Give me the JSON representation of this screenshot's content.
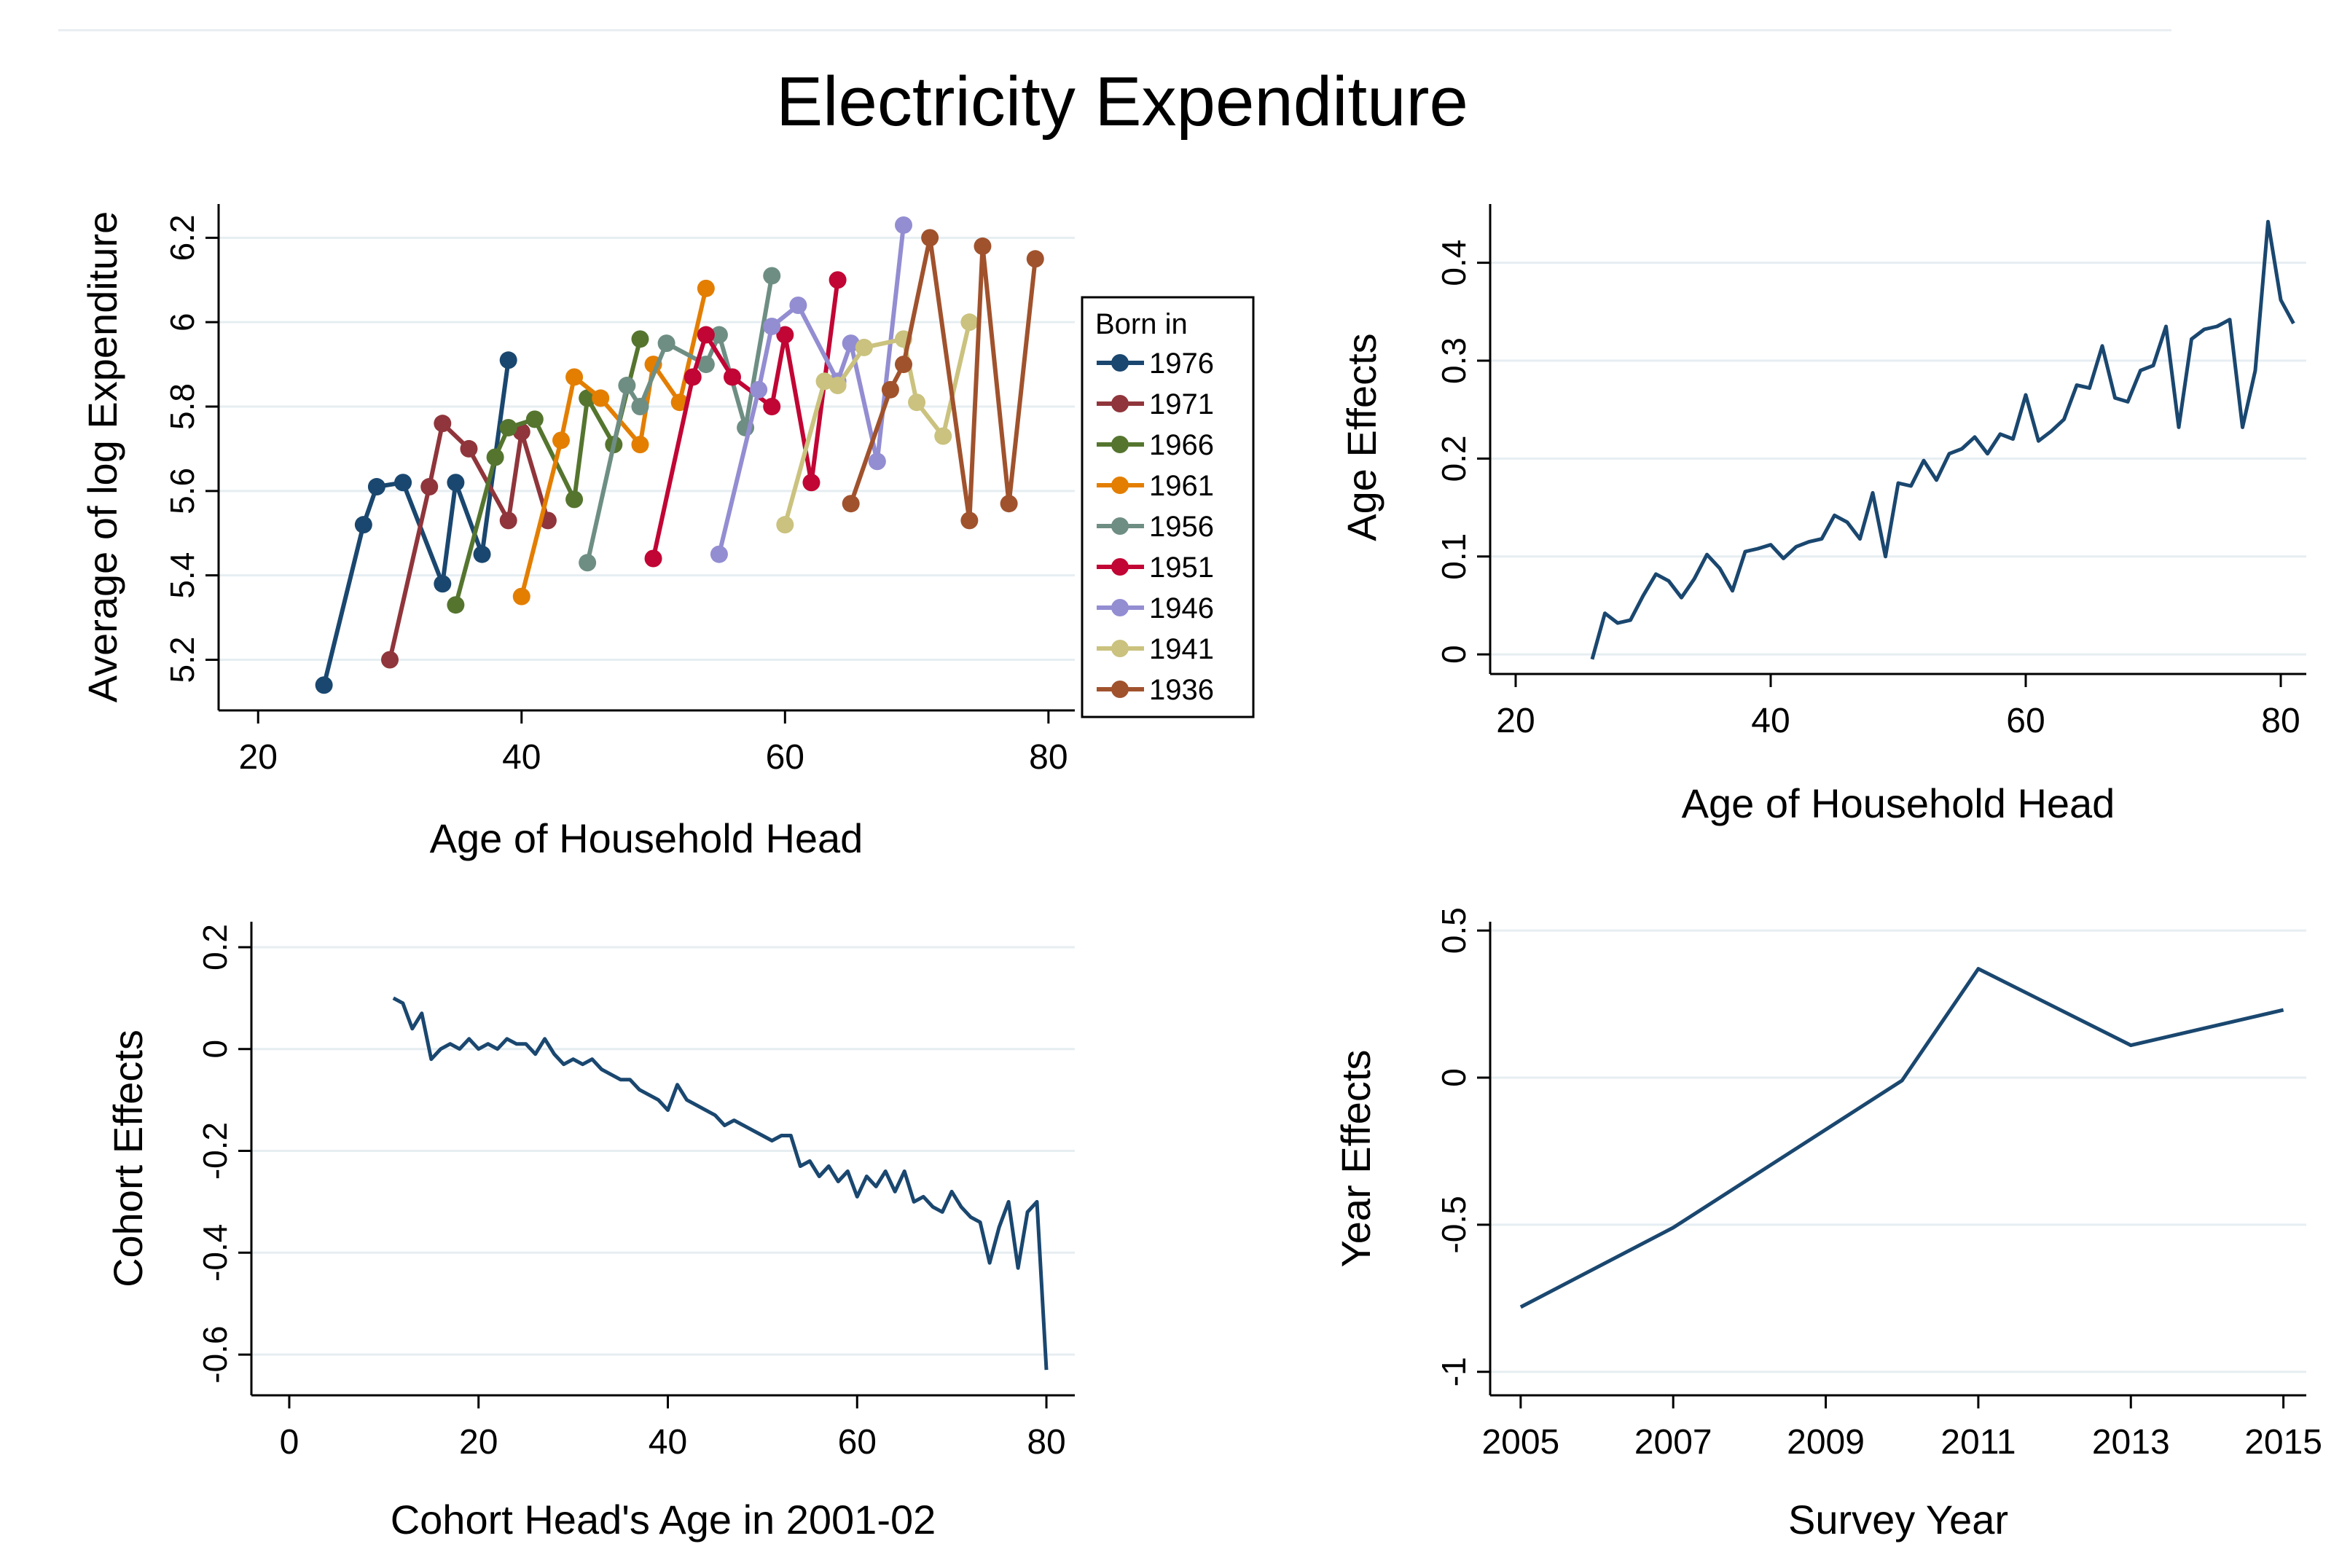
{
  "figure": {
    "title": "Electricity Expenditure"
  },
  "colors": {
    "series": [
      "#1a476f",
      "#90353b",
      "#55752f",
      "#e37e00",
      "#6e8e84",
      "#c10534",
      "#938dd2",
      "#cac27e",
      "#a0522d"
    ],
    "line": "#1a476f",
    "grid": "#e6eef2",
    "axis": "#000000"
  },
  "chart_data": [
    {
      "id": "cohort-profiles",
      "type": "line",
      "title": "",
      "xlabel": "Age of Household Head",
      "ylabel": "Average of log Expenditure",
      "xlim": [
        17,
        82
      ],
      "ylim": [
        5.08,
        6.28
      ],
      "xticks": [
        20,
        40,
        60,
        80
      ],
      "yticks": [
        5.2,
        5.4,
        5.6,
        5.8,
        6.0,
        6.2
      ],
      "ytick_labels": [
        "5.2",
        "5.4",
        "5.6",
        "5.8",
        "6",
        "6.2"
      ],
      "legend": {
        "title": "Born in",
        "position": "right"
      },
      "series": [
        {
          "name": "1976",
          "x": [
            25,
            28,
            29,
            31,
            34,
            35,
            37,
            39
          ],
          "y": [
            5.14,
            5.52,
            5.61,
            5.62,
            5.38,
            5.62,
            5.45,
            5.91
          ]
        },
        {
          "name": "1971",
          "x": [
            30,
            33,
            34,
            36,
            39,
            40,
            42
          ],
          "y": [
            5.2,
            5.61,
            5.76,
            5.7,
            5.53,
            5.74,
            5.53
          ]
        },
        {
          "name": "1966",
          "x": [
            35,
            38,
            39,
            41,
            44,
            45,
            47,
            49
          ],
          "y": [
            5.33,
            5.68,
            5.75,
            5.77,
            5.58,
            5.82,
            5.71,
            5.96
          ]
        },
        {
          "name": "1961",
          "x": [
            40,
            43,
            44,
            46,
            49,
            50,
            52,
            54
          ],
          "y": [
            5.35,
            5.72,
            5.87,
            5.82,
            5.71,
            5.9,
            5.81,
            6.08
          ]
        },
        {
          "name": "1956",
          "x": [
            45,
            48,
            49,
            51,
            54,
            55,
            57,
            59
          ],
          "y": [
            5.43,
            5.85,
            5.8,
            5.95,
            5.9,
            5.97,
            5.75,
            6.11
          ]
        },
        {
          "name": "1951",
          "x": [
            50,
            53,
            54,
            56,
            59,
            60,
            62,
            64
          ],
          "y": [
            5.44,
            5.87,
            5.97,
            5.87,
            5.8,
            5.97,
            5.62,
            6.1
          ]
        },
        {
          "name": "1946",
          "x": [
            55,
            58,
            59,
            61,
            64,
            65,
            67,
            69
          ],
          "y": [
            5.45,
            5.84,
            5.99,
            6.04,
            5.86,
            5.95,
            5.67,
            6.23
          ]
        },
        {
          "name": "1941",
          "x": [
            60,
            63,
            64,
            66,
            69,
            70,
            72,
            74
          ],
          "y": [
            5.52,
            5.86,
            5.85,
            5.94,
            5.96,
            5.81,
            5.73,
            6.0
          ]
        },
        {
          "name": "1936",
          "x": [
            65,
            68,
            69,
            71,
            74,
            75,
            77,
            79
          ],
          "y": [
            5.57,
            5.84,
            5.9,
            6.2,
            5.53,
            6.18,
            5.57,
            6.15
          ]
        }
      ]
    },
    {
      "id": "age-effects",
      "type": "line",
      "title": "",
      "xlabel": "Age of Household Head",
      "ylabel": "Age Effects",
      "xlim": [
        18,
        82
      ],
      "ylim": [
        -0.02,
        0.46
      ],
      "xticks": [
        20,
        40,
        60,
        80
      ],
      "yticks": [
        0,
        0.1,
        0.2,
        0.3,
        0.4
      ],
      "ytick_labels": [
        "0",
        "0.1",
        "0.2",
        "0.3",
        "0.4"
      ],
      "series": [
        {
          "name": "Age Effects",
          "x": [
            26,
            27,
            28,
            29,
            30,
            31,
            32,
            33,
            34,
            35,
            36,
            37,
            38,
            39,
            40,
            41,
            42,
            43,
            44,
            45,
            46,
            47,
            48,
            49,
            50,
            51,
            52,
            53,
            54,
            55,
            56,
            57,
            58,
            59,
            60,
            61,
            62,
            63,
            64,
            65,
            66,
            67,
            68,
            69,
            70,
            71,
            72,
            73,
            74,
            75,
            76,
            77,
            78,
            79,
            80,
            81
          ],
          "y": [
            -0.005,
            0.042,
            0.032,
            0.035,
            0.06,
            0.082,
            0.075,
            0.058,
            0.077,
            0.102,
            0.088,
            0.065,
            0.105,
            0.108,
            0.112,
            0.098,
            0.11,
            0.115,
            0.118,
            0.142,
            0.135,
            0.118,
            0.165,
            0.1,
            0.175,
            0.172,
            0.198,
            0.178,
            0.205,
            0.21,
            0.222,
            0.205,
            0.225,
            0.22,
            0.265,
            0.218,
            0.228,
            0.24,
            0.275,
            0.272,
            0.315,
            0.262,
            0.258,
            0.29,
            0.295,
            0.335,
            0.232,
            0.322,
            0.332,
            0.335,
            0.342,
            0.232,
            0.29,
            0.442,
            0.362,
            0.338
          ]
        }
      ]
    },
    {
      "id": "cohort-effects",
      "type": "line",
      "title": "",
      "xlabel": "Cohort Head's Age in 2001-02",
      "ylabel": "Cohort Effects",
      "xlim": [
        -4,
        83
      ],
      "ylim": [
        -0.68,
        0.25
      ],
      "xticks": [
        0,
        20,
        40,
        60,
        80
      ],
      "yticks": [
        -0.6,
        -0.4,
        -0.2,
        0,
        0.2
      ],
      "ytick_labels": [
        "-0.6",
        "-0.4",
        "-0.2",
        "0",
        "0.2"
      ],
      "series": [
        {
          "name": "Cohort Effects",
          "x": [
            11,
            12,
            13,
            14,
            15,
            16,
            17,
            18,
            19,
            20,
            21,
            22,
            23,
            24,
            25,
            26,
            27,
            28,
            29,
            30,
            31,
            32,
            33,
            34,
            35,
            36,
            37,
            38,
            39,
            40,
            41,
            42,
            43,
            44,
            45,
            46,
            47,
            48,
            49,
            50,
            51,
            52,
            53,
            54,
            55,
            56,
            57,
            58,
            59,
            60,
            61,
            62,
            63,
            64,
            65,
            66,
            67,
            68,
            69,
            70,
            71,
            72,
            73,
            74,
            75,
            76,
            77,
            78,
            79,
            80
          ],
          "y": [
            0.1,
            0.09,
            0.04,
            0.07,
            -0.02,
            0.0,
            0.01,
            0.0,
            0.02,
            0.0,
            0.01,
            0.0,
            0.02,
            0.01,
            0.01,
            -0.01,
            0.02,
            -0.01,
            -0.03,
            -0.02,
            -0.03,
            -0.02,
            -0.04,
            -0.05,
            -0.06,
            -0.06,
            -0.08,
            -0.09,
            -0.1,
            -0.12,
            -0.07,
            -0.1,
            -0.11,
            -0.12,
            -0.13,
            -0.15,
            -0.14,
            -0.15,
            -0.16,
            -0.17,
            -0.18,
            -0.17,
            -0.17,
            -0.23,
            -0.22,
            -0.25,
            -0.23,
            -0.26,
            -0.24,
            -0.29,
            -0.25,
            -0.27,
            -0.24,
            -0.28,
            -0.24,
            -0.3,
            -0.29,
            -0.31,
            -0.32,
            -0.28,
            -0.31,
            -0.33,
            -0.34,
            -0.42,
            -0.35,
            -0.3,
            -0.43,
            -0.32,
            -0.3,
            -0.63
          ]
        }
      ]
    },
    {
      "id": "year-effects",
      "type": "line",
      "title": "",
      "xlabel": "Survey Year",
      "ylabel": "Year Effects",
      "xlim": [
        2004.6,
        2015.3
      ],
      "ylim": [
        -1.08,
        0.53
      ],
      "xticks": [
        2005,
        2007,
        2009,
        2011,
        2013,
        2015
      ],
      "yticks": [
        -1,
        -0.5,
        0,
        0.5
      ],
      "ytick_labels": [
        "-1",
        "-0.5",
        "0",
        "0.5"
      ],
      "series": [
        {
          "name": "Year Effects",
          "x": [
            2005,
            2007,
            2010,
            2011,
            2013,
            2015
          ],
          "y": [
            -0.78,
            -0.51,
            -0.01,
            0.37,
            0.11,
            0.23
          ]
        }
      ]
    }
  ]
}
